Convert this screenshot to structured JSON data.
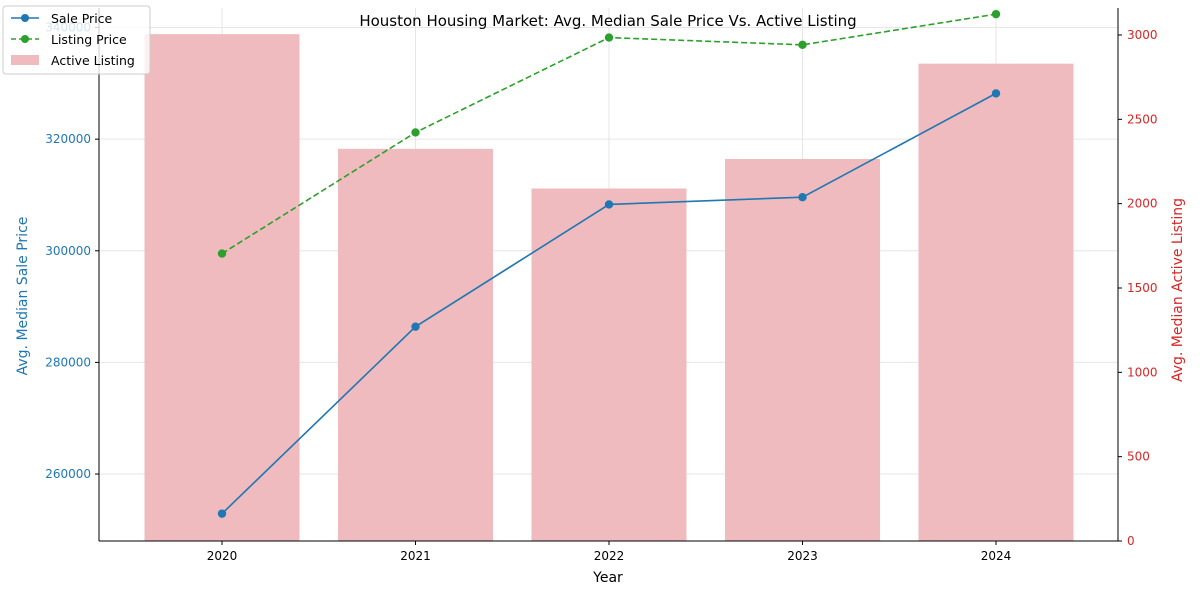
{
  "chart_data": {
    "type": "bar",
    "title": "Houston Housing Market: Avg. Median Sale Price Vs. Active Listing",
    "xlabel": "Year",
    "ylabel_left": "Avg. Median Sale Price",
    "ylabel_right": "Avg. Median Active Listing",
    "categories": [
      "2020",
      "2021",
      "2022",
      "2023",
      "2024"
    ],
    "ylim_left": [
      248000,
      343500
    ],
    "ylim_right": [
      0,
      3160
    ],
    "yticks_left": [
      260000,
      280000,
      300000,
      320000,
      340000
    ],
    "yticks_right": [
      0,
      500,
      1000,
      1500,
      2000,
      2500,
      3000
    ],
    "grid": true,
    "legend_position": "top-left",
    "series": [
      {
        "name": "Sale Price",
        "type": "line",
        "axis": "left",
        "color": "#1f77b4",
        "style": "solid",
        "values": [
          252900,
          286400,
          308300,
          309600,
          328200
        ]
      },
      {
        "name": "Listing Price",
        "type": "line",
        "axis": "left",
        "color": "#2ca02c",
        "style": "dashed",
        "values": [
          299500,
          321200,
          338200,
          336900,
          342400
        ]
      },
      {
        "name": "Active Listing",
        "type": "bar",
        "axis": "right",
        "color": "#d62728",
        "values": [
          3005,
          2325,
          2090,
          2265,
          2830
        ]
      }
    ],
    "colors": {
      "left_axis": "#1f77b4",
      "right_axis": "#d62728",
      "bar_fill": "#efbbbe"
    }
  }
}
